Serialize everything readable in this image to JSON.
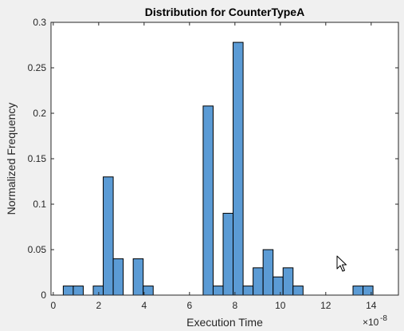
{
  "chart_data": {
    "type": "bar",
    "title": "Distribution for CounterTypeA",
    "xlabel": "Execution Time",
    "ylabel": "Normalized Frequency",
    "x_exponent_label": "×10",
    "x_exponent_power": "-8",
    "xlim": [
      -0.1,
      15.2
    ],
    "ylim": [
      0,
      0.3
    ],
    "xticks": [
      0,
      2,
      4,
      6,
      8,
      10,
      12,
      14
    ],
    "xtick_labels": [
      "0",
      "2",
      "4",
      "6",
      "8",
      "10",
      "12",
      "14"
    ],
    "yticks": [
      0,
      0.05,
      0.1,
      0.15,
      0.2,
      0.25,
      0.3
    ],
    "ytick_labels": [
      "0",
      "0.05",
      "0.1",
      "0.15",
      "0.2",
      "0.25",
      "0.3"
    ],
    "bin_width": 0.44,
    "bins": [
      {
        "start": 0.44,
        "value": 0.01
      },
      {
        "start": 0.88,
        "value": 0.01
      },
      {
        "start": 1.76,
        "value": 0.01
      },
      {
        "start": 2.2,
        "value": 0.13
      },
      {
        "start": 2.64,
        "value": 0.04
      },
      {
        "start": 3.52,
        "value": 0.04
      },
      {
        "start": 3.96,
        "value": 0.01
      },
      {
        "start": 6.6,
        "value": 0.208
      },
      {
        "start": 7.04,
        "value": 0.01
      },
      {
        "start": 7.48,
        "value": 0.09
      },
      {
        "start": 7.92,
        "value": 0.278
      },
      {
        "start": 8.36,
        "value": 0.01
      },
      {
        "start": 8.8,
        "value": 0.03
      },
      {
        "start": 9.24,
        "value": 0.05
      },
      {
        "start": 9.68,
        "value": 0.02
      },
      {
        "start": 10.12,
        "value": 0.03
      },
      {
        "start": 10.56,
        "value": 0.01
      },
      {
        "start": 13.2,
        "value": 0.01
      },
      {
        "start": 13.64,
        "value": 0.01
      }
    ],
    "bar_color": "#5b9bd5",
    "bar_edge_color": "#000000",
    "grid": false,
    "box": true
  },
  "cursor": {
    "icon": "mouse-pointer-icon"
  }
}
